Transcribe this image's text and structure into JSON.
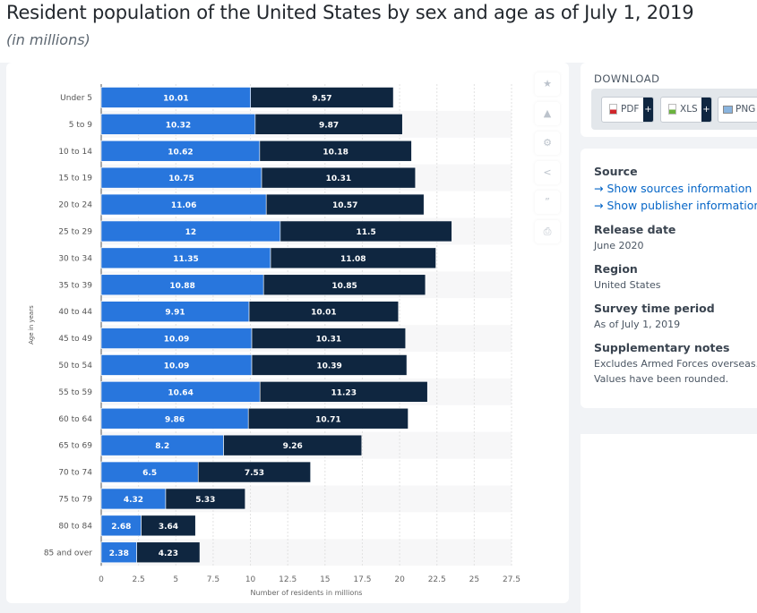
{
  "header": {
    "title": "Resident population of the United States by sex and age as of July 1, 2019",
    "subtitle": "(in millions)"
  },
  "side_icons": [
    "star-icon",
    "bell-icon",
    "gear-icon",
    "share-icon",
    "quote-icon",
    "print-icon"
  ],
  "download": {
    "title": "DOWNLOAD",
    "buttons": [
      {
        "label": "PDF",
        "plus": "+"
      },
      {
        "label": "XLS",
        "plus": "+"
      },
      {
        "label": "PNG"
      }
    ]
  },
  "info": {
    "source_label": "Source",
    "show_sources": "Show sources information",
    "show_publisher": "Show publisher information",
    "release_label": "Release date",
    "release": "June 2020",
    "region_label": "Region",
    "region": "United States",
    "survey_label": "Survey time period",
    "survey": "As of July 1, 2019",
    "notes_label": "Supplementary notes",
    "notes_1": "Excludes Armed Forces overseas.",
    "notes_2": "Values have been rounded.",
    "arrow": "→"
  },
  "colors": {
    "series1": "#2876dd",
    "series2": "#0f2640"
  },
  "chart_data": {
    "type": "bar",
    "orientation": "horizontal",
    "stacked": true,
    "categories": [
      "Under 5",
      "5 to 9",
      "10 to 14",
      "15 to 19",
      "20 to 24",
      "25 to 29",
      "30 to 34",
      "35 to 39",
      "40 to 44",
      "45 to 49",
      "50 to 54",
      "55 to 59",
      "60 to 64",
      "65 to 69",
      "70 to 74",
      "75 to 79",
      "80 to 84",
      "85 and over"
    ],
    "series": [
      {
        "values": [
          10.01,
          10.32,
          10.62,
          10.75,
          11.06,
          12,
          11.35,
          10.88,
          9.91,
          10.09,
          10.09,
          10.64,
          9.86,
          8.2,
          6.5,
          4.32,
          2.68,
          2.38
        ]
      },
      {
        "values": [
          9.57,
          9.87,
          10.18,
          10.31,
          10.57,
          11.5,
          11.08,
          10.85,
          10.01,
          10.31,
          10.39,
          11.23,
          10.71,
          9.26,
          7.53,
          5.33,
          3.64,
          4.23
        ]
      }
    ],
    "xlabel": "Number of residents in millions",
    "ylabel": "Age in years",
    "xlim": [
      0,
      27.5
    ],
    "xticks": [
      "0",
      "2.5",
      "5",
      "7.5",
      "10",
      "12.5",
      "15",
      "17.5",
      "20",
      "22.5",
      "25",
      "27.5"
    ],
    "grid": true,
    "legend": "none"
  }
}
